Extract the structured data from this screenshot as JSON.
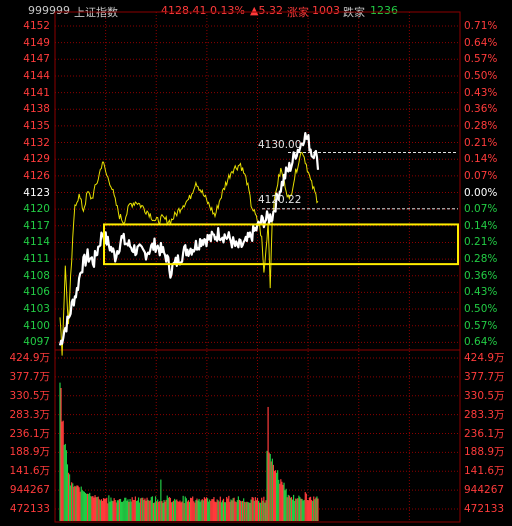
{
  "header": {
    "code": "999999",
    "name": "上证指数",
    "price": "4128.41",
    "pct": "0.13%",
    "change": "▲5.32",
    "up_label": "涨家",
    "up_count": "1003",
    "down_label": "跌家",
    "down_count": "1236"
  },
  "price_axis_left": [
    "4152",
    "4149",
    "4147",
    "4144",
    "4141",
    "4138",
    "4135",
    "4132",
    "4129",
    "4126",
    "4123",
    "4120",
    "4117",
    "4114",
    "4111",
    "4108",
    "4106",
    "4103",
    "4100",
    "4097"
  ],
  "price_axis_right": [
    "0.71%",
    "0.64%",
    "0.57%",
    "0.50%",
    "0.43%",
    "0.36%",
    "0.28%",
    "0.21%",
    "0.14%",
    "0.07%",
    "0.00%",
    "0.07%",
    "0.14%",
    "0.21%",
    "0.28%",
    "0.36%",
    "0.43%",
    "0.50%",
    "0.57%",
    "0.64%"
  ],
  "volume_axis_left": [
    "424.9万",
    "377.7万",
    "330.5万",
    "283.3万",
    "236.1万",
    "188.9万",
    "141.6万",
    "944267",
    "472133"
  ],
  "volume_axis_right": [
    "424.9万",
    "377.7万",
    "330.5万",
    "283.3万",
    "236.1万",
    "188.9万",
    "141.6万",
    "944267",
    "472133"
  ],
  "annotations": {
    "high": "4130.00",
    "low": "4120.22"
  },
  "colors": {
    "up": "#ff3b3b",
    "down": "#22cc44",
    "neutral": "#ffffff",
    "price_line": "#ffffff",
    "avg_line": "#e8e000",
    "highlight_box": "#ffee00",
    "grid": "#8b0000"
  },
  "chart_data": {
    "type": "line",
    "y_range": [
      4097,
      4152
    ],
    "prev_close": 4123.09,
    "series": [],
    "volume_ylim": [
      0,
      4249000
    ]
  }
}
